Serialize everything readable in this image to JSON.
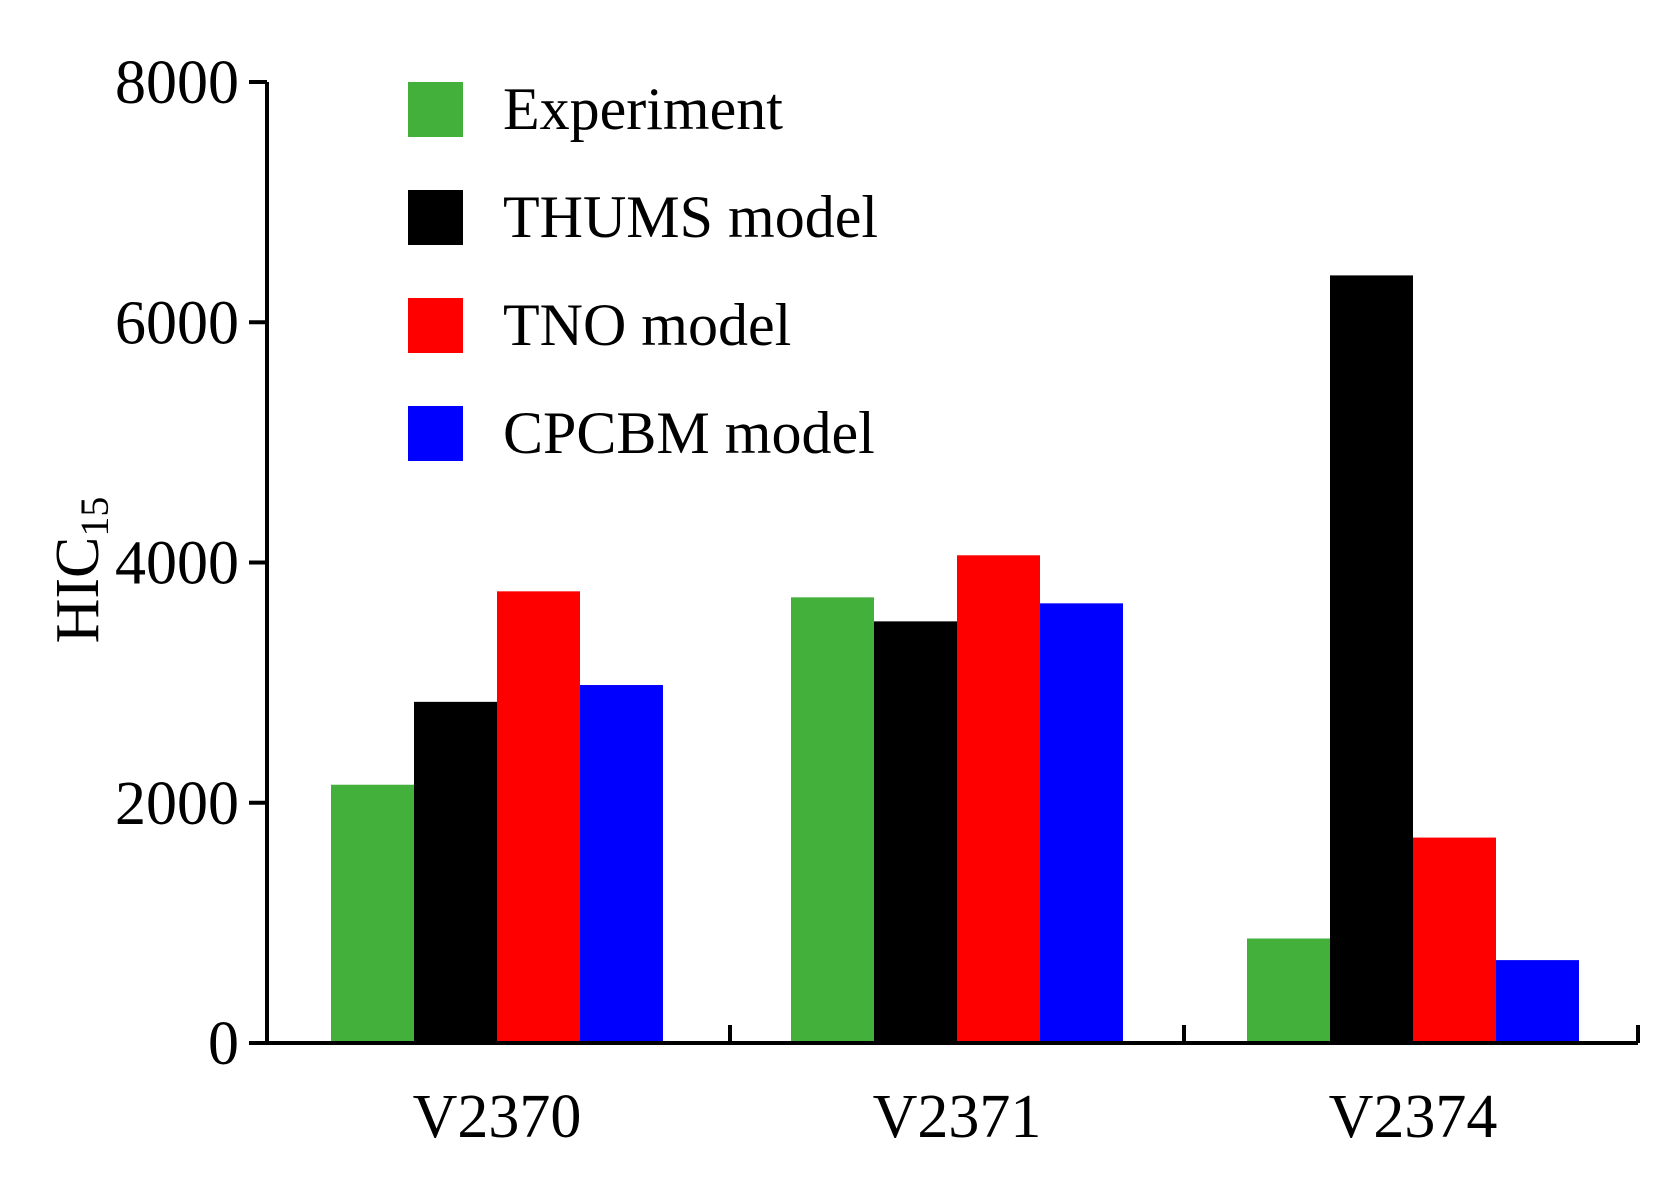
{
  "chart_data": {
    "type": "bar",
    "title": "",
    "xlabel": "",
    "ylabel": "HIC",
    "ylabel_subscript": "15",
    "categories": [
      "V2370",
      "V2371",
      "V2374"
    ],
    "ylim": [
      0,
      8000
    ],
    "yticks": [
      0,
      2000,
      4000,
      6000,
      8000
    ],
    "ytick_labels": [
      "0",
      "2000",
      "4000",
      "6000",
      "8000"
    ],
    "grid": false,
    "legend_position": "top-left",
    "series": [
      {
        "name": "Experiment",
        "color": "#44b03c",
        "values": [
          2150,
          3710,
          870
        ]
      },
      {
        "name": "THUMS model",
        "color": "#000000",
        "values": [
          2840,
          3510,
          6390
        ]
      },
      {
        "name": "TNO model",
        "color": "#ff0000",
        "values": [
          3760,
          4060,
          1710
        ]
      },
      {
        "name": "CPCBM model",
        "color": "#0000ff",
        "values": [
          2980,
          3660,
          690
        ]
      }
    ]
  }
}
